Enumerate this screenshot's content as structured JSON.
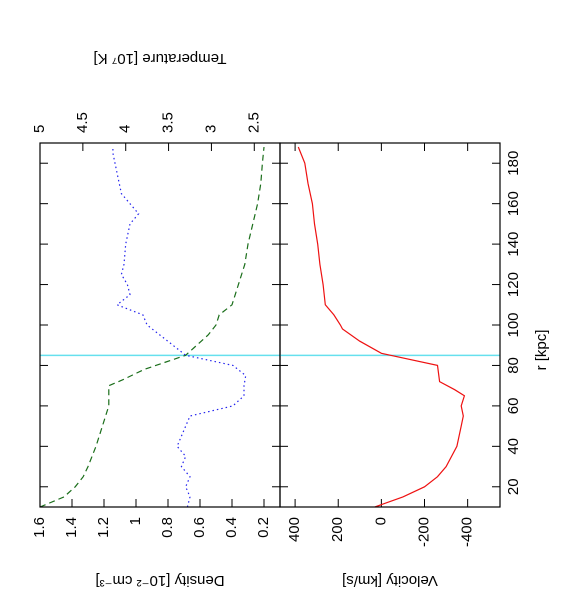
{
  "chart_data": [
    {
      "type": "line",
      "ylabel": "Density [10⁻² cm⁻³]",
      "y2label": "Temperature [10⁷ K]",
      "xlim": [
        10,
        190
      ],
      "xticks": [
        20,
        40,
        60,
        80,
        100,
        120,
        140,
        160,
        180
      ],
      "ylim": [
        0.1,
        1.6
      ],
      "yticks": [
        0.2,
        0.4,
        0.6,
        0.8,
        1,
        1.2,
        1.4,
        1.6
      ],
      "y2lim": [
        2.2,
        5
      ],
      "y2ticks": [
        2.5,
        3,
        3.5,
        4,
        4.5,
        5
      ],
      "vline": 85,
      "vline_color": "#66e0ee",
      "series": [
        {
          "color": "#1a6e1a",
          "dash": "6,4",
          "x": [
            10,
            15,
            20,
            25,
            30,
            40,
            50,
            60,
            70,
            73,
            78,
            85,
            90,
            95,
            100,
            105,
            110,
            120,
            130,
            140,
            150,
            160,
            170,
            180,
            188
          ],
          "values": [
            1.6,
            1.45,
            1.38,
            1.33,
            1.3,
            1.25,
            1.21,
            1.17,
            1.17,
            1.08,
            0.95,
            0.69,
            0.62,
            0.55,
            0.5,
            0.48,
            0.4,
            0.36,
            0.32,
            0.3,
            0.27,
            0.24,
            0.22,
            0.21,
            0.2
          ]
        },
        {
          "color": "#2222ee",
          "dash": "1.5,3",
          "axis": "y2",
          "x": [
            10,
            15,
            20,
            25,
            30,
            35,
            40,
            45,
            50,
            55,
            60,
            65,
            70,
            75,
            80,
            85,
            90,
            95,
            100,
            105,
            110,
            115,
            120,
            125,
            130,
            140,
            150,
            155,
            160,
            165,
            175,
            185,
            188
          ],
          "values": [
            3.28,
            3.25,
            3.3,
            3.25,
            3.35,
            3.3,
            3.4,
            3.35,
            3.3,
            3.25,
            2.75,
            2.62,
            2.62,
            2.6,
            2.75,
            3.3,
            3.45,
            3.6,
            3.75,
            3.8,
            4.1,
            3.95,
            3.98,
            4.05,
            4.02,
            4.0,
            3.95,
            3.85,
            3.95,
            4.05,
            4.1,
            4.15,
            4.15
          ]
        }
      ]
    },
    {
      "type": "line",
      "xlabel": "r [kpc]",
      "ylabel": "Velocity [km/s]",
      "xlim": [
        10,
        190
      ],
      "xticks": [
        20,
        40,
        60,
        80,
        100,
        120,
        140,
        160,
        180
      ],
      "ylim": [
        -550,
        470
      ],
      "yticks": [
        -400,
        -200,
        0,
        200,
        400
      ],
      "vline": 85,
      "vline_color": "#66e0ee",
      "series": [
        {
          "color": "#ee1111",
          "dash": "none",
          "x": [
            10,
            15,
            20,
            25,
            30,
            40,
            50,
            55,
            60,
            65,
            68,
            72,
            80,
            86,
            92,
            98,
            100,
            105,
            110,
            120,
            130,
            140,
            150,
            160,
            170,
            180,
            188
          ],
          "values": [
            30,
            -100,
            -200,
            -260,
            -300,
            -350,
            -370,
            -380,
            -370,
            -385,
            -340,
            -270,
            -260,
            0,
            100,
            180,
            190,
            220,
            260,
            270,
            285,
            295,
            310,
            320,
            340,
            355,
            385
          ]
        }
      ]
    }
  ]
}
